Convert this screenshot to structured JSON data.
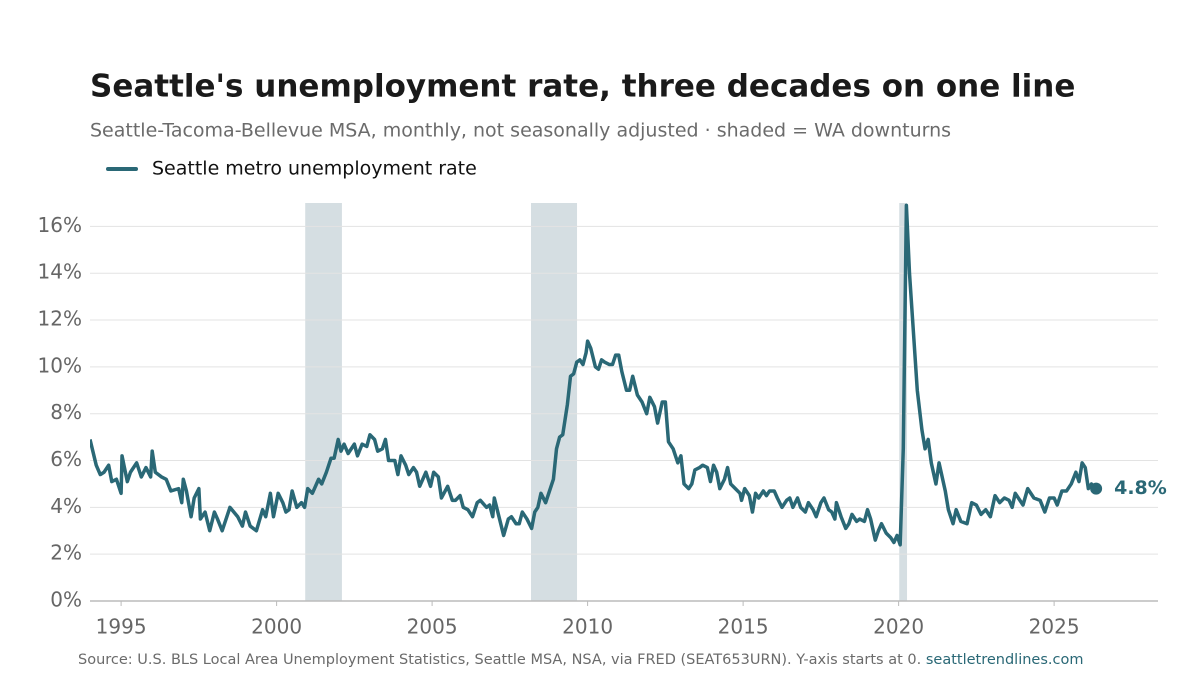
{
  "chart_data": {
    "type": "line",
    "title": "Seattle's unemployment rate, three decades on one line",
    "subtitle": "Seattle-Tacoma-Bellevue MSA, monthly, not seasonally adjusted · shaded = WA downturns",
    "source": "Source: U.S. BLS Local Area Unemployment Statistics, Seattle MSA, NSA, via FRED (SEAT653URN). Y-axis starts at 0.",
    "source_link": "seattletrendlines.com",
    "x": [
      1994.0,
      1994.2,
      1994.33,
      1994.45,
      1994.6,
      1994.7,
      1994.85,
      1995.0,
      1995.03,
      1995.2,
      1995.3,
      1995.5,
      1995.65,
      1995.8,
      1995.95,
      1996.0,
      1996.1,
      1996.3,
      1996.45,
      1996.6,
      1996.85,
      1996.95,
      1997.0,
      1997.1,
      1997.25,
      1997.35,
      1997.5,
      1997.55,
      1997.7,
      1997.85,
      1998.0,
      1998.1,
      1998.25,
      1998.5,
      1998.75,
      1998.9,
      1999.0,
      1999.15,
      1999.35,
      1999.55,
      1999.65,
      1999.8,
      1999.9,
      2000.05,
      2000.2,
      2000.3,
      2000.4,
      2000.5,
      2000.65,
      2000.8,
      2000.9,
      2001.0,
      2001.15,
      2001.35,
      2001.45,
      2001.6,
      2001.75,
      2001.85,
      2001.98,
      2002.07,
      2002.17,
      2002.3,
      2002.5,
      2002.6,
      2002.75,
      2002.9,
      2003.0,
      2003.15,
      2003.25,
      2003.4,
      2003.5,
      2003.6,
      2003.8,
      2003.9,
      2004.0,
      2004.15,
      2004.25,
      2004.4,
      2004.5,
      2004.6,
      2004.8,
      2004.95,
      2005.05,
      2005.2,
      2005.3,
      2005.5,
      2005.65,
      2005.75,
      2005.9,
      2006.0,
      2006.15,
      2006.3,
      2006.45,
      2006.55,
      2006.75,
      2006.85,
      2006.95,
      2007.0,
      2007.15,
      2007.3,
      2007.45,
      2007.55,
      2007.7,
      2007.8,
      2007.9,
      2008.05,
      2008.2,
      2008.3,
      2008.4,
      2008.5,
      2008.65,
      2008.75,
      2008.9,
      2009.0,
      2009.1,
      2009.2,
      2009.35,
      2009.45,
      2009.55,
      2009.65,
      2009.75,
      2009.85,
      2009.95,
      2010.0,
      2010.1,
      2010.25,
      2010.35,
      2010.45,
      2010.55,
      2010.7,
      2010.8,
      2010.9,
      2011.0,
      2011.1,
      2011.25,
      2011.35,
      2011.45,
      2011.6,
      2011.75,
      2011.9,
      2012.0,
      2012.15,
      2012.25,
      2012.4,
      2012.5,
      2012.6,
      2012.75,
      2012.9,
      2013.0,
      2013.1,
      2013.25,
      2013.35,
      2013.45,
      2013.6,
      2013.7,
      2013.85,
      2013.95,
      2014.05,
      2014.15,
      2014.25,
      2014.4,
      2014.5,
      2014.6,
      2014.75,
      2014.9,
      2014.95,
      2015.05,
      2015.2,
      2015.3,
      2015.4,
      2015.5,
      2015.65,
      2015.75,
      2015.85,
      2016.0,
      2016.1,
      2016.25,
      2016.4,
      2016.5,
      2016.6,
      2016.75,
      2016.85,
      2017.0,
      2017.1,
      2017.25,
      2017.35,
      2017.5,
      2017.6,
      2017.75,
      2017.85,
      2017.95,
      2018.0,
      2018.15,
      2018.3,
      2018.4,
      2018.5,
      2018.65,
      2018.75,
      2018.9,
      2019.0,
      2019.1,
      2019.25,
      2019.35,
      2019.45,
      2019.6,
      2019.75,
      2019.85,
      2019.95,
      2020.05,
      2020.15,
      2020.25,
      2020.35,
      2020.45,
      2020.6,
      2020.75,
      2020.85,
      2020.95,
      2021.05,
      2021.2,
      2021.3,
      2021.5,
      2021.6,
      2021.75,
      2021.85,
      2022.0,
      2022.2,
      2022.35,
      2022.5,
      2022.65,
      2022.8,
      2022.95,
      2023.1,
      2023.25,
      2023.4,
      2023.55,
      2023.65,
      2023.75,
      2024.0,
      2024.15,
      2024.35,
      2024.55,
      2024.7,
      2024.85,
      2025.0,
      2025.1,
      2025.25,
      2025.4,
      2025.55,
      2025.7,
      2025.8,
      2025.9,
      2026.0,
      2026.1,
      2026.2,
      2026.35
    ],
    "series": [
      {
        "name": "Seattle metro unemployment rate",
        "color": "#2a6876",
        "values": [
          6.9,
          5.8,
          5.4,
          5.5,
          5.8,
          5.1,
          5.2,
          4.6,
          6.2,
          5.1,
          5.5,
          5.9,
          5.3,
          5.7,
          5.3,
          6.4,
          5.5,
          5.3,
          5.2,
          4.7,
          4.8,
          4.2,
          5.2,
          4.7,
          3.6,
          4.4,
          4.8,
          3.5,
          3.8,
          3.0,
          3.8,
          3.5,
          3.0,
          4.0,
          3.6,
          3.2,
          3.8,
          3.2,
          3.0,
          3.9,
          3.6,
          4.6,
          3.6,
          4.6,
          4.2,
          3.8,
          3.9,
          4.7,
          4.0,
          4.2,
          4.0,
          4.8,
          4.6,
          5.2,
          5.0,
          5.5,
          6.1,
          6.1,
          6.9,
          6.4,
          6.7,
          6.3,
          6.7,
          6.2,
          6.7,
          6.6,
          7.1,
          6.9,
          6.4,
          6.5,
          6.9,
          6.0,
          6.0,
          5.4,
          6.2,
          5.8,
          5.4,
          5.7,
          5.5,
          4.9,
          5.5,
          4.9,
          5.5,
          5.3,
          4.4,
          4.9,
          4.3,
          4.3,
          4.5,
          4.0,
          3.9,
          3.6,
          4.2,
          4.3,
          4.0,
          4.1,
          3.6,
          4.4,
          3.6,
          2.8,
          3.5,
          3.6,
          3.3,
          3.3,
          3.8,
          3.5,
          3.1,
          3.8,
          4.0,
          4.6,
          4.2,
          4.6,
          5.2,
          6.5,
          7.0,
          7.1,
          8.4,
          9.6,
          9.7,
          10.2,
          10.3,
          10.1,
          10.6,
          11.1,
          10.8,
          10.0,
          9.9,
          10.3,
          10.2,
          10.1,
          10.1,
          10.5,
          10.5,
          9.8,
          9.0,
          9.0,
          9.6,
          8.8,
          8.5,
          8.0,
          8.7,
          8.3,
          7.6,
          8.5,
          8.5,
          6.8,
          6.5,
          5.9,
          6.2,
          5.0,
          4.8,
          5.0,
          5.6,
          5.7,
          5.8,
          5.7,
          5.1,
          5.8,
          5.5,
          4.8,
          5.2,
          5.7,
          5.0,
          4.8,
          4.6,
          4.3,
          4.8,
          4.5,
          3.8,
          4.6,
          4.4,
          4.7,
          4.5,
          4.7,
          4.7,
          4.4,
          4.0,
          4.3,
          4.4,
          4.0,
          4.4,
          4.0,
          3.8,
          4.2,
          3.9,
          3.6,
          4.2,
          4.4,
          3.9,
          3.8,
          3.5,
          4.2,
          3.6,
          3.1,
          3.3,
          3.7,
          3.4,
          3.5,
          3.4,
          3.9,
          3.5,
          2.6,
          3.0,
          3.3,
          2.9,
          2.7,
          2.5,
          2.8,
          2.4,
          6.5,
          16.9,
          14.0,
          12.0,
          9.0,
          7.3,
          6.5,
          6.9,
          5.9,
          5.0,
          5.9,
          4.7,
          3.9,
          3.3,
          3.9,
          3.4,
          3.3,
          4.2,
          4.1,
          3.7,
          3.9,
          3.6,
          4.5,
          4.2,
          4.4,
          4.3,
          4.0,
          4.6,
          4.1,
          4.8,
          4.4,
          4.3,
          3.8,
          4.4,
          4.4,
          4.1,
          4.7,
          4.7,
          5.0,
          5.5,
          5.1,
          5.9,
          5.7,
          4.8,
          5.0,
          4.8
        ]
      }
    ],
    "end_label": "4.8%",
    "shaded_periods": [
      [
        2000.92,
        2002.1
      ],
      [
        2008.18,
        2009.66
      ],
      [
        2020.02,
        2020.27
      ]
    ],
    "shade_color": "#d5dee2",
    "xlim": [
      1994.0,
      2028.34
    ],
    "ylim": [
      0,
      17
    ],
    "xticks": [
      1995,
      2000,
      2005,
      2010,
      2015,
      2020,
      2025
    ],
    "yticks": [
      {
        "value": 0,
        "label": "0%"
      },
      {
        "value": 2,
        "label": "2%"
      },
      {
        "value": 4,
        "label": "4%"
      },
      {
        "value": 6,
        "label": "6%"
      },
      {
        "value": 8,
        "label": "8%"
      },
      {
        "value": 10,
        "label": "10%"
      },
      {
        "value": 12,
        "label": "12%"
      },
      {
        "value": 14,
        "label": "14%"
      },
      {
        "value": 16,
        "label": "16%"
      }
    ],
    "grid": true,
    "legend": "top-left"
  }
}
